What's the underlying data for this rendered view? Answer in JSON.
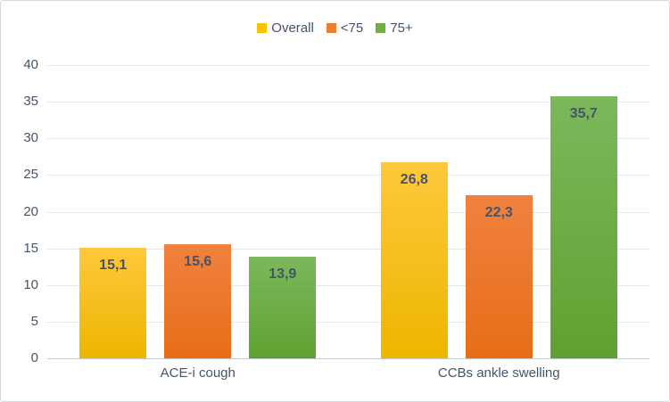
{
  "chart_data": {
    "type": "bar",
    "categories": [
      "ACE-i cough",
      "CCBs ankle swelling"
    ],
    "series": [
      {
        "name": "Overall",
        "values": [
          15.1,
          26.8
        ],
        "labels": [
          "15,1",
          "26,8"
        ],
        "color": "#FFC008",
        "gradient_top": "#FFC83C",
        "gradient_bottom": "#EDB600"
      },
      {
        "name": "<75",
        "values": [
          15.6,
          22.3
        ],
        "labels": [
          "15,6",
          "22,3"
        ],
        "color": "#ED7D31",
        "gradient_top": "#F0813E",
        "gradient_bottom": "#E76E18"
      },
      {
        "name": "75+",
        "values": [
          13.9,
          35.7
        ],
        "labels": [
          "13,9",
          "35,7"
        ],
        "color": "#70AD47",
        "gradient_top": "#7CB85C",
        "gradient_bottom": "#5FA130"
      }
    ],
    "title": "",
    "xlabel": "",
    "ylabel": "",
    "ylim": [
      0,
      40
    ],
    "y_ticks": [
      0,
      5,
      10,
      15,
      20,
      25,
      30,
      35,
      40
    ],
    "grid": true,
    "legend_position": "top",
    "decimal_separator": ","
  },
  "style": {
    "text_color": "#44546A",
    "gridline_color": "#E3E8EE",
    "axis_line_color": "#C6CBD3",
    "border_color": "#D6DAE0",
    "background": "#FFFFFF"
  }
}
